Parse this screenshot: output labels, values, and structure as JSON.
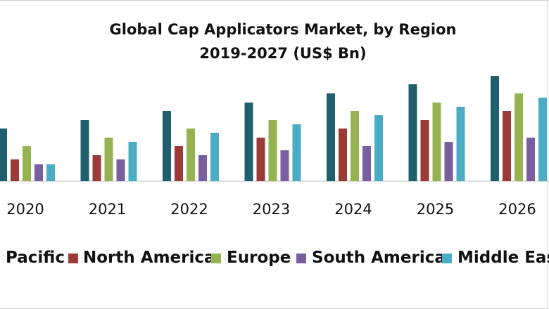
{
  "chart_data": {
    "type": "bar",
    "title": "Global Cap Applicators Market, by Region",
    "subtitle": "2019-2027 (US$ Bn)",
    "xlabel": "",
    "ylabel": "",
    "categories": [
      "2020",
      "2021",
      "2022",
      "2023",
      "2024",
      "2025",
      "2026"
    ],
    "ylim": [
      0,
      150
    ],
    "grid": false,
    "legend_position": "bottom",
    "series": [
      {
        "name": "Pacific",
        "color": "#1f5f6e",
        "values": [
          75,
          87,
          100,
          112,
          125,
          138,
          150
        ]
      },
      {
        "name": "North America",
        "color": "#9b3a36",
        "values": [
          31,
          37,
          50,
          62,
          75,
          87,
          100
        ]
      },
      {
        "name": "Europe",
        "color": "#95b451",
        "values": [
          50,
          62,
          75,
          87,
          100,
          112,
          125
        ]
      },
      {
        "name": "South America",
        "color": "#7a5fa0",
        "values": [
          24,
          31,
          37,
          44,
          50,
          56,
          62
        ]
      },
      {
        "name": "Middle East",
        "color": "#4aacc5",
        "values": [
          24,
          56,
          69,
          81,
          94,
          106,
          119
        ]
      }
    ]
  }
}
